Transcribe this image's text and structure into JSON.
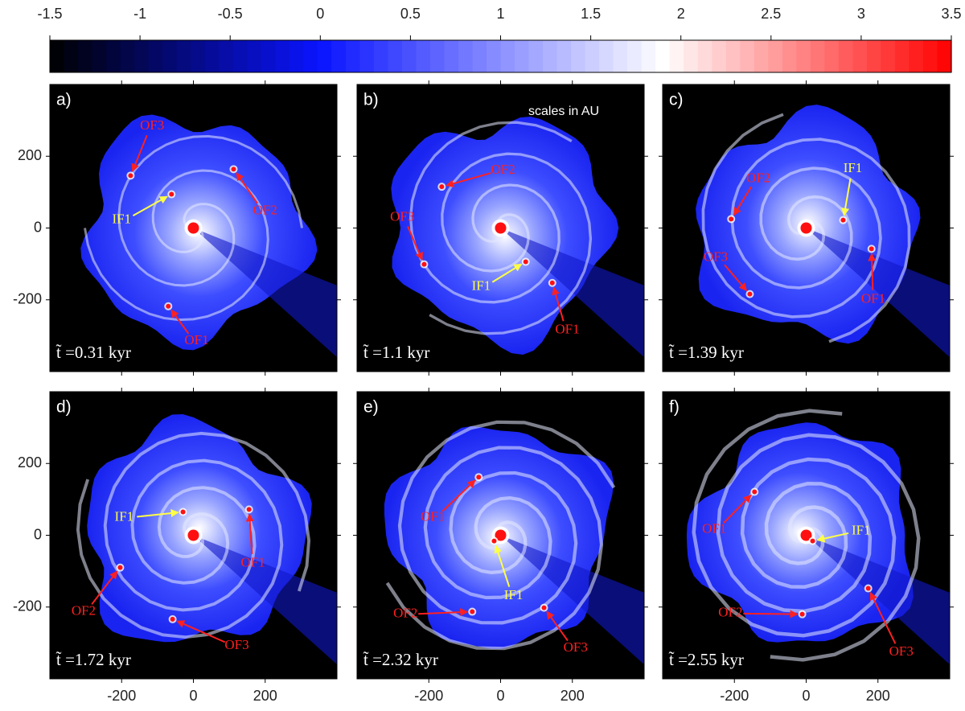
{
  "colorbar": {
    "xlim": [
      -1.5,
      3.5
    ],
    "ticks": [
      -1.5,
      -1,
      -0.5,
      0,
      0.5,
      1,
      1.5,
      2,
      2.5,
      3,
      3.5
    ],
    "colormap": [
      {
        "value": -1.5,
        "color": "#000000"
      },
      {
        "value": 0,
        "color": "#0a14ff"
      },
      {
        "value": 1.9,
        "color": "#ffffff"
      },
      {
        "value": 3.5,
        "color": "#ff0000"
      }
    ]
  },
  "xlim": [
    -400,
    400
  ],
  "ylim": [
    -400,
    400
  ],
  "xticks": [
    -200,
    0,
    200
  ],
  "yticks": [
    200,
    0,
    -200
  ],
  "panels": [
    {
      "label": "a)",
      "time": "t̃ =0.31 kyr",
      "annotations": [
        {
          "text": "OF3",
          "color": "#ff2020",
          "x": -175,
          "y": 146,
          "label_x": -115,
          "label_y": 283
        },
        {
          "text": "OF2",
          "color": "#ff2020",
          "x": 112,
          "y": 164,
          "label_x": 200,
          "label_y": 47
        },
        {
          "text": "IF1",
          "color": "#ffff44",
          "x": -61,
          "y": 94,
          "label_x": -200,
          "label_y": 22
        },
        {
          "text": "OF1",
          "color": "#ff2020",
          "x": -70,
          "y": -218,
          "label_x": 9,
          "label_y": -315
        }
      ]
    },
    {
      "label": "b)",
      "time": "t̃ =1.1 kyr",
      "note": "scales in AU",
      "annotations": [
        {
          "text": "OF2",
          "color": "#ff2020",
          "x": -164,
          "y": 115,
          "label_x": 7,
          "label_y": 160
        },
        {
          "text": "OF3",
          "color": "#ff2020",
          "x": -213,
          "y": -101,
          "label_x": -274,
          "label_y": 29
        },
        {
          "text": "IF1",
          "color": "#ffff44",
          "x": 70,
          "y": -94,
          "label_x": -54,
          "label_y": -164
        },
        {
          "text": "OF1",
          "color": "#ff2020",
          "x": 144,
          "y": -153,
          "label_x": 186,
          "label_y": -285
        }
      ]
    },
    {
      "label": "c)",
      "time": "t̃ =1.39 kyr",
      "annotations": [
        {
          "text": "OF2",
          "color": "#ff2020",
          "x": -209,
          "y": 25,
          "label_x": -133,
          "label_y": 137
        },
        {
          "text": "IF1",
          "color": "#ffff44",
          "x": 103,
          "y": 22,
          "label_x": 130,
          "label_y": 164
        },
        {
          "text": "OF1",
          "color": "#ff2020",
          "x": 182,
          "y": -58,
          "label_x": 187,
          "label_y": -200
        },
        {
          "text": "OF3",
          "color": "#ff2020",
          "x": -157,
          "y": -184,
          "label_x": -252,
          "label_y": -83
        }
      ]
    },
    {
      "label": "d)",
      "time": "t̃ =1.72 kyr",
      "annotations": [
        {
          "text": "IF1",
          "color": "#ffff44",
          "x": -29,
          "y": 65,
          "label_x": -193,
          "label_y": 49
        },
        {
          "text": "OF1",
          "color": "#ff2020",
          "x": 155,
          "y": 72,
          "label_x": 166,
          "label_y": -79
        },
        {
          "text": "OF2",
          "color": "#ff2020",
          "x": -204,
          "y": -90,
          "label_x": -306,
          "label_y": -213
        },
        {
          "text": "OF3",
          "color": "#ff2020",
          "x": -58,
          "y": -234,
          "label_x": 121,
          "label_y": -308
        }
      ]
    },
    {
      "label": "e)",
      "time": "t̃ =2.32 kyr",
      "annotations": [
        {
          "text": "OF1",
          "color": "#ff2020",
          "x": -61,
          "y": 162,
          "label_x": -189,
          "label_y": 49
        },
        {
          "text": "IF1",
          "color": "#ffff44",
          "x": -18,
          "y": -16,
          "label_x": 36,
          "label_y": -169
        },
        {
          "text": "OF2",
          "color": "#ff2020",
          "x": -79,
          "y": -213,
          "label_x": -265,
          "label_y": -220
        },
        {
          "text": "OF3",
          "color": "#ff2020",
          "x": 121,
          "y": -202,
          "label_x": 209,
          "label_y": -315
        }
      ]
    },
    {
      "label": "f)",
      "time": "t̃ =2.55 kyr",
      "annotations": [
        {
          "text": "OF1",
          "color": "#ff2020",
          "x": -144,
          "y": 121,
          "label_x": -256,
          "label_y": 16
        },
        {
          "text": "IF1",
          "color": "#ffff44",
          "x": 18,
          "y": -16,
          "label_x": 153,
          "label_y": 11
        },
        {
          "text": "OF3",
          "color": "#ff2020",
          "x": 173,
          "y": -148,
          "label_x": 265,
          "label_y": -326
        },
        {
          "text": "OF2",
          "color": "#ff2020",
          "x": -11,
          "y": -220,
          "label_x": -211,
          "label_y": -218
        }
      ]
    }
  ]
}
